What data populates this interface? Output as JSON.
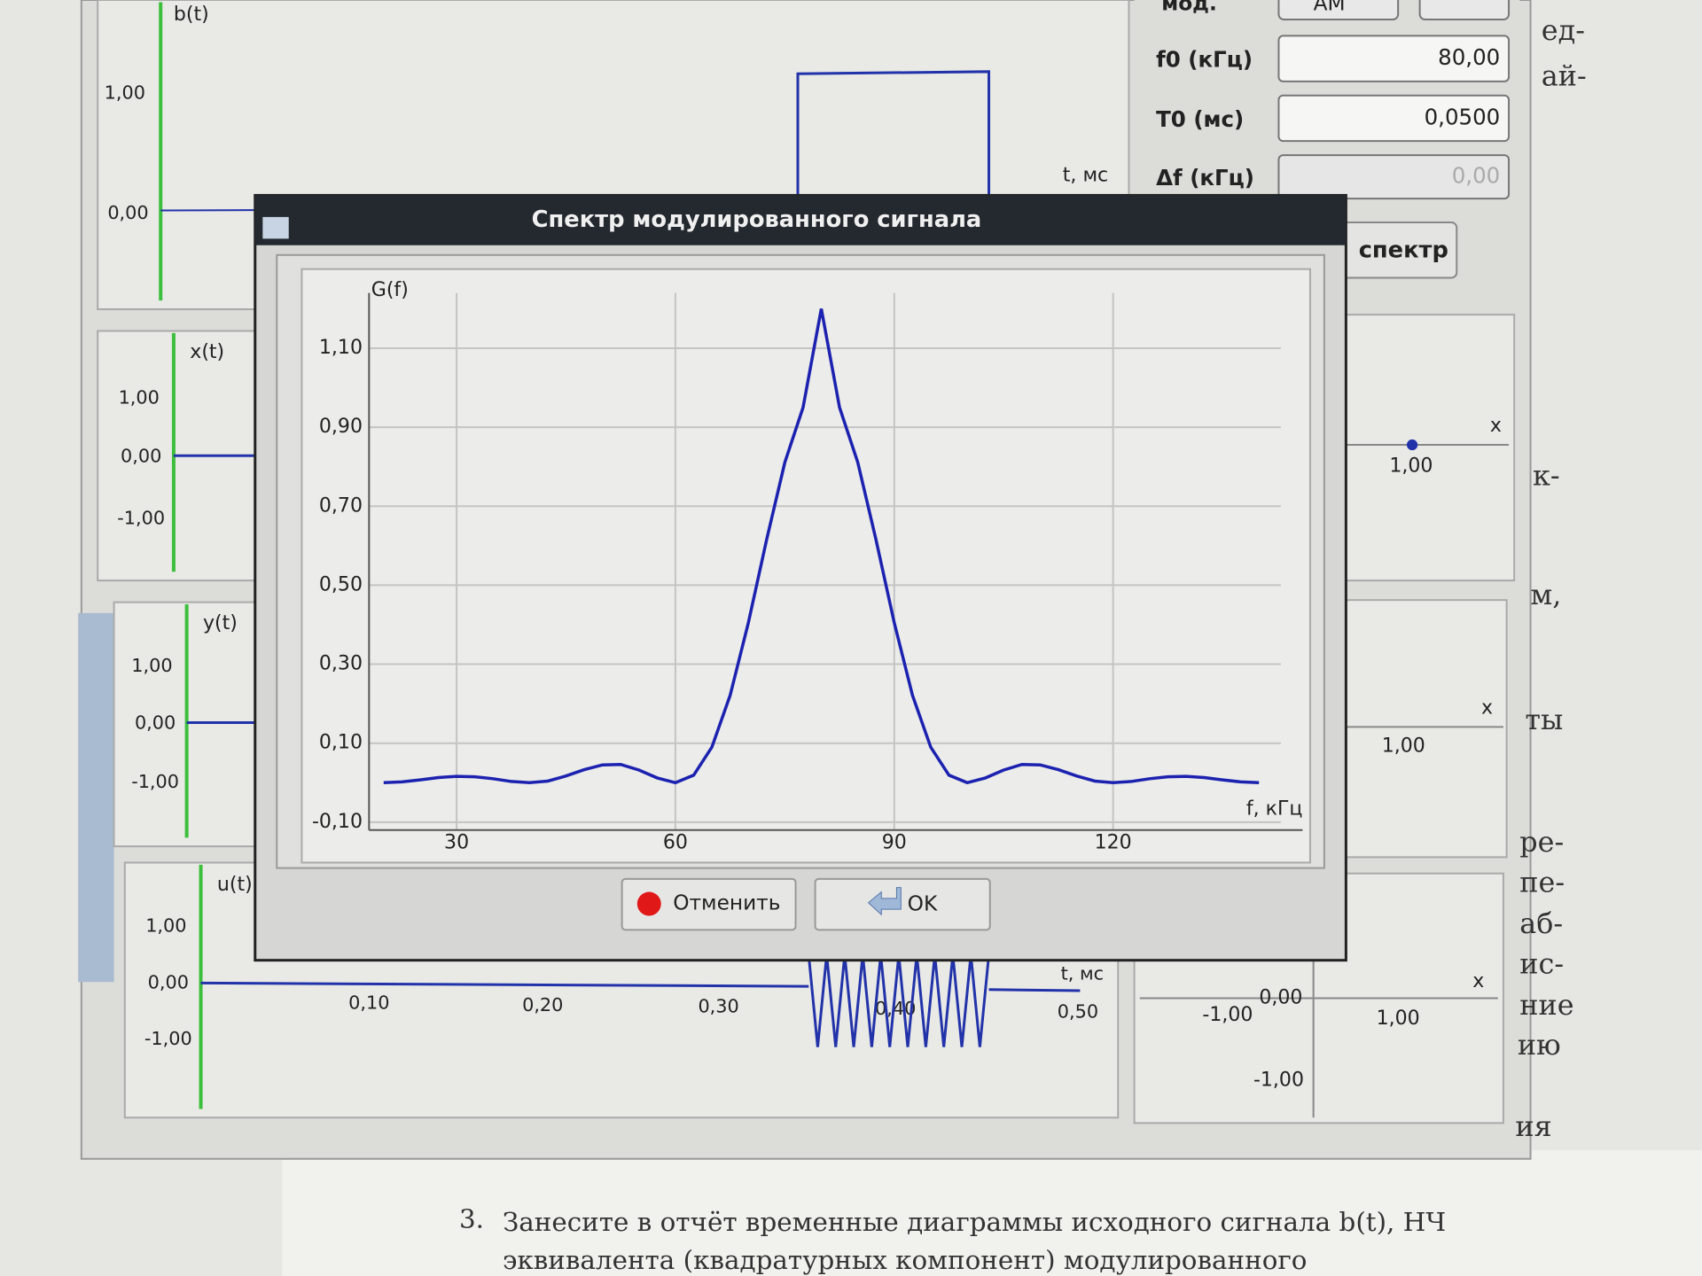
{
  "controls": {
    "mode_label": "мод.",
    "mode_value": "АМ",
    "fields": [
      {
        "label": "f0 (кГц)",
        "value": "80,00"
      },
      {
        "label": "T0 (мс)",
        "value": "0,0500"
      },
      {
        "label": "Δf (кГц)",
        "value": "0,00"
      }
    ],
    "spectrum_button": "спектр"
  },
  "plots": [
    {
      "label": "b(t)",
      "yticks": [
        "1,00",
        "0,00"
      ],
      "xlabel": "t, мс"
    },
    {
      "label": "x(t)",
      "yticks": [
        "1,00",
        "0,00",
        "-1,00"
      ]
    },
    {
      "label": "y(t)",
      "yticks": [
        "1,00",
        "0,00",
        "-1,00"
      ]
    },
    {
      "label": "u(t)",
      "yticks": [
        "1,00",
        "0,00",
        "-1,00"
      ],
      "xticks": [
        "0,10",
        "0,20",
        "0,30",
        "0,40",
        "0,50"
      ],
      "xlabel": "t, мс"
    }
  ],
  "phase_plots": [
    {
      "xlabel": "x",
      "ticks": [
        "1,00"
      ]
    },
    {
      "xlabel": "x",
      "ticks": [
        "1,00"
      ]
    },
    {
      "xlabel": "x",
      "ticks": [
        "0,00",
        "-1,00",
        "1,00",
        "-1,00"
      ]
    }
  ],
  "dialog": {
    "title": "Спектр модулированного сигнала",
    "cancel": "Отменить",
    "ok": "OK"
  },
  "chart_data": {
    "type": "line",
    "y_label": "G(f)",
    "x_label": "f, кГц",
    "color": "#1c22b0",
    "x": [
      20,
      22.5,
      25,
      27.5,
      30,
      32.5,
      35,
      37.5,
      40,
      42.5,
      45,
      47.5,
      50,
      52.5,
      55,
      57.5,
      60,
      62.5,
      65,
      67.5,
      70,
      72.5,
      75,
      77.5,
      80,
      82.5,
      85,
      87.5,
      90,
      92.5,
      95,
      97.5,
      100,
      102.5,
      105,
      107.5,
      110,
      112.5,
      115,
      117.5,
      120,
      122.5,
      125,
      127.5,
      130,
      132.5,
      135,
      137.5,
      140
    ],
    "values": [
      0,
      0.002,
      0.007,
      0.013,
      0.016,
      0.015,
      0.01,
      0.003,
      0,
      0.004,
      0.017,
      0.033,
      0.045,
      0.046,
      0.032,
      0.012,
      0,
      0.019,
      0.09,
      0.221,
      0.405,
      0.615,
      0.811,
      0.95,
      1.2,
      0.95,
      0.811,
      0.615,
      0.405,
      0.221,
      0.09,
      0.019,
      0,
      0.012,
      0.032,
      0.046,
      0.045,
      0.033,
      0.017,
      0.004,
      0,
      0.003,
      0.01,
      0.015,
      0.016,
      0.013,
      0.007,
      0.002,
      0
    ],
    "xlim": [
      18,
      143
    ],
    "ylim": [
      -0.12,
      1.24
    ],
    "xticks": [
      30,
      60,
      90,
      120
    ],
    "yticks": [
      {
        "value": -0.1,
        "label": "-0,10"
      },
      {
        "value": 0.1,
        "label": "0,10"
      },
      {
        "value": 0.3,
        "label": "0,30"
      },
      {
        "value": 0.5,
        "label": "0,50"
      },
      {
        "value": 0.7,
        "label": "0,70"
      },
      {
        "value": 0.9,
        "label": "0,90"
      },
      {
        "value": 1.1,
        "label": "1,10"
      }
    ],
    "grid": true
  },
  "document": {
    "item": "3.",
    "lines": [
      "Занесите в отчёт временные диаграммы исходного сигнала b(t), НЧ",
      "эквивалента (квадратурных компонент) модулированного"
    ],
    "margin": [
      "ед-",
      "ай-",
      "к-",
      "м,",
      "ты",
      "ре-",
      "пе-",
      "аб-",
      "ис-",
      "ние",
      "ию",
      "ия"
    ]
  }
}
